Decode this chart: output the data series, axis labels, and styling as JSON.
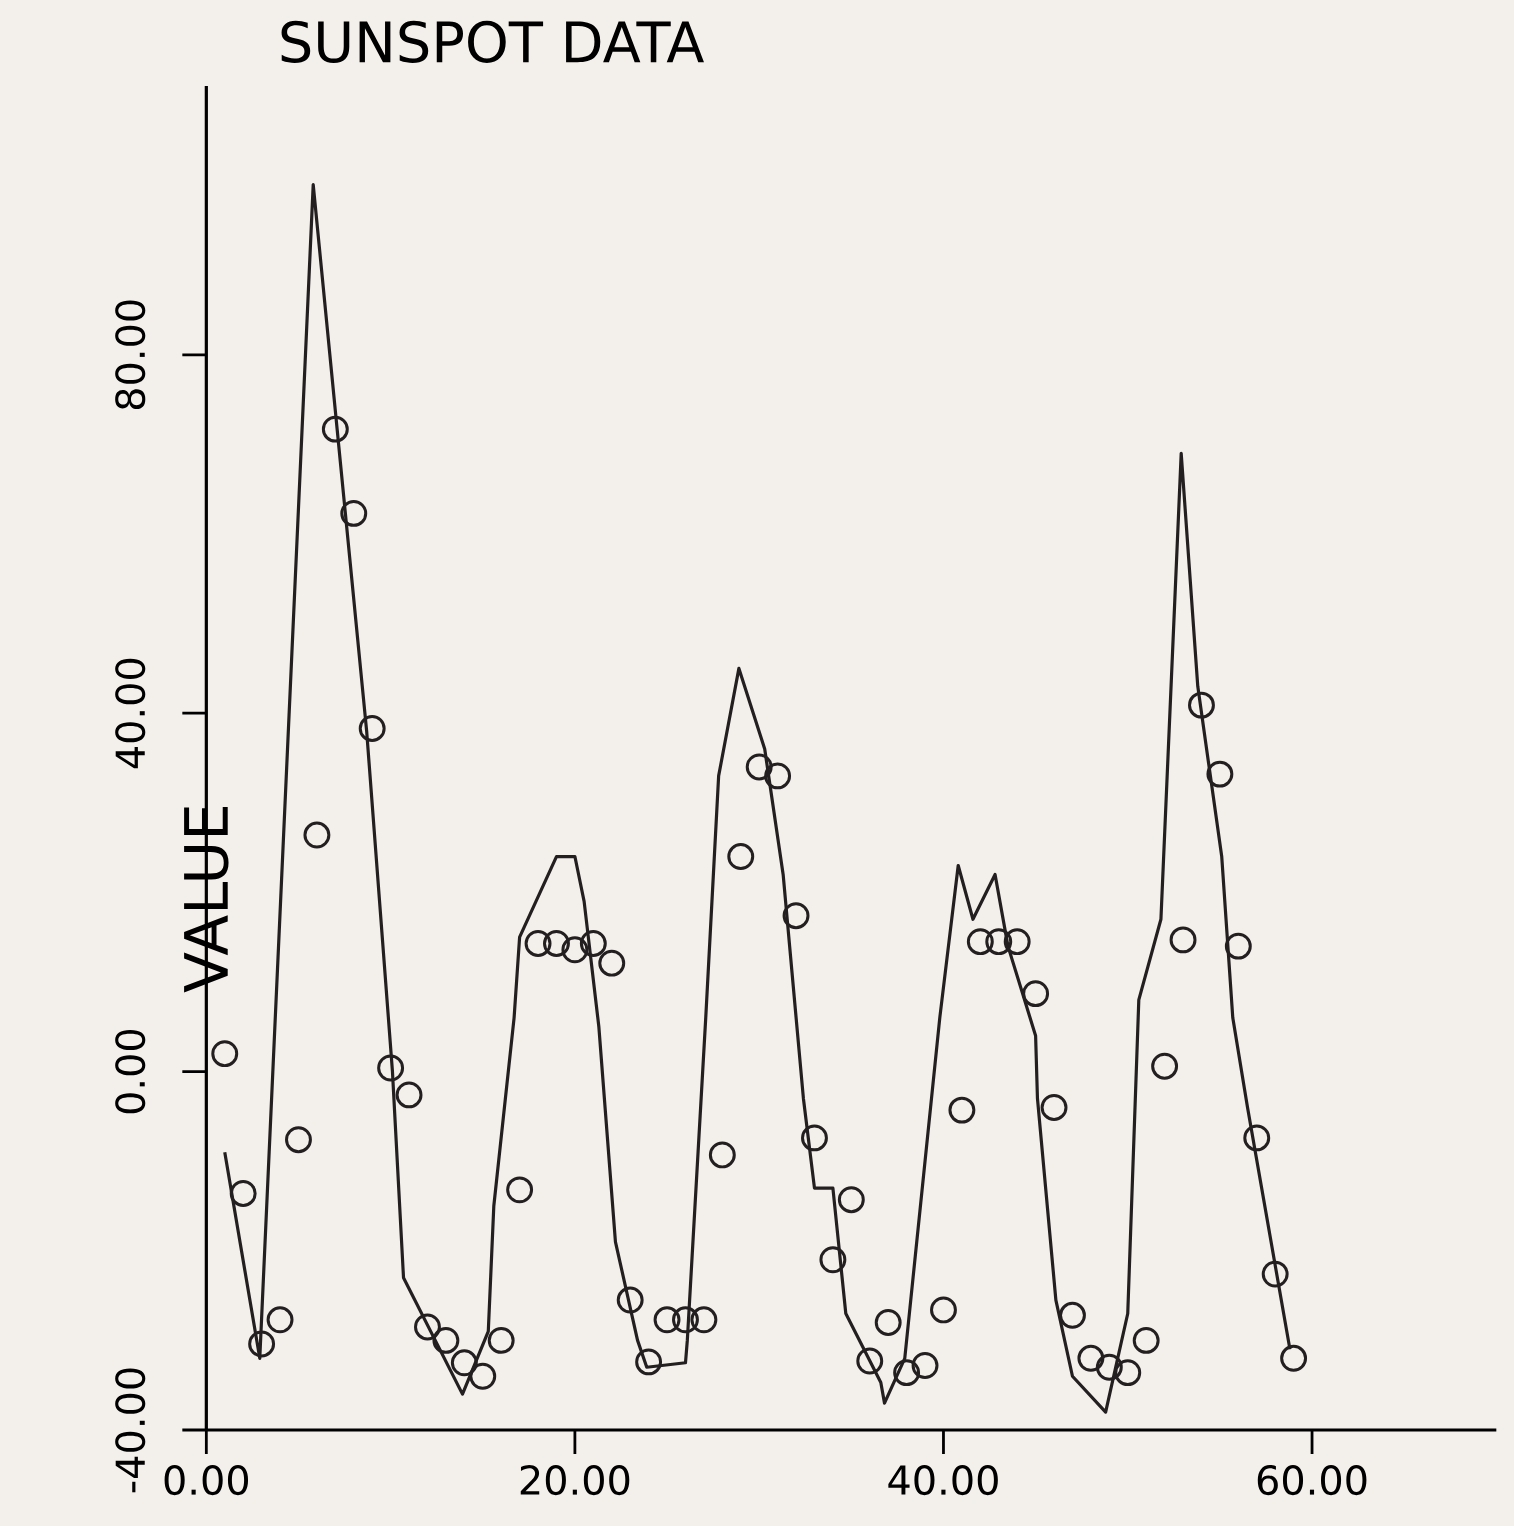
{
  "chart_data": {
    "type": "line",
    "title": "SUNSPOT DATA",
    "ylabel": "VALUE",
    "xlim": [
      0,
      70
    ],
    "ylim": [
      -40,
      110
    ],
    "xticks": [
      {
        "value": 0,
        "label": "0.00"
      },
      {
        "value": 20,
        "label": "20.00"
      },
      {
        "value": 40,
        "label": "40.00"
      },
      {
        "value": 60,
        "label": "60.00"
      }
    ],
    "yticks": [
      {
        "value": -40,
        "label": "-40.00"
      },
      {
        "value": 0,
        "label": "0.00"
      },
      {
        "value": 40,
        "label": "40.00"
      },
      {
        "value": 80,
        "label": "80.00"
      }
    ],
    "series": [
      {
        "color": "#231f20",
        "marker": "none",
        "x": [
          1,
          2.9,
          5.8,
          8.7,
          10.1,
          10.7,
          13.9,
          15.3,
          15.6,
          16.7,
          17,
          19,
          20,
          20.5,
          21.3,
          22.2,
          23.4,
          23.9,
          26,
          26.1,
          27.1,
          27.8,
          28.9,
          30.3,
          31.3,
          32.4,
          33,
          34,
          34.7,
          36.6,
          36.8,
          37.9,
          39.8,
          40.8,
          41.6,
          42.8,
          43.5,
          45,
          45.1,
          46.1,
          47,
          48.8,
          50,
          50.6,
          51.8,
          52.9,
          53.8,
          55.1,
          55.7,
          56.5,
          58.8
        ],
        "values": [
          -9,
          -32,
          99,
          38,
          0,
          -23,
          -36,
          -29,
          -15,
          6,
          15,
          24,
          24,
          19,
          5,
          -19,
          -30,
          -33,
          -32.5,
          -30,
          6,
          33,
          45,
          36,
          22,
          -3,
          -13,
          -13,
          -27,
          -34.7,
          -37,
          -32,
          6,
          23,
          17,
          22,
          14,
          4,
          -3,
          -25.5,
          -34,
          -38,
          -27,
          8,
          17,
          69,
          43,
          24,
          6,
          -4,
          -31
        ]
      },
      {
        "type": "scatter",
        "color": "#231f20",
        "marker": "circle",
        "x": [
          1,
          2,
          3,
          4,
          5,
          6,
          7,
          8,
          9,
          10,
          11,
          12,
          13,
          14,
          15,
          16,
          17,
          18,
          19,
          20,
          21,
          22,
          23,
          24,
          25,
          26,
          27,
          28,
          29,
          30,
          31,
          32,
          33,
          34,
          35,
          36,
          37,
          38,
          39,
          40,
          41,
          42,
          43,
          44,
          45,
          46,
          47,
          48,
          49,
          50,
          51,
          52,
          53,
          54,
          55,
          56,
          57,
          58,
          59
        ],
        "values": [
          2,
          -13.6,
          -30.4,
          -27.7,
          -7.6,
          26.4,
          71.7,
          62.3,
          38.3,
          0.4,
          -2.6,
          -28.5,
          -30,
          -32.5,
          -34,
          -30,
          -13.2,
          14.3,
          14.3,
          13.6,
          14.3,
          12.1,
          -25.5,
          -32.4,
          -27.7,
          -27.7,
          -27.7,
          -9.3,
          24,
          34,
          33,
          17.4,
          -7.4,
          -21,
          -14.3,
          -32.3,
          -28,
          -33.6,
          -32.8,
          -26.6,
          -4.3,
          14.5,
          14.5,
          14.5,
          8.7,
          -4,
          -27.2,
          -32,
          -33,
          -33.6,
          -30,
          0.6,
          14.7,
          40.9,
          33.2,
          14,
          -7.4,
          -22.6,
          -32
        ]
      }
    ]
  }
}
